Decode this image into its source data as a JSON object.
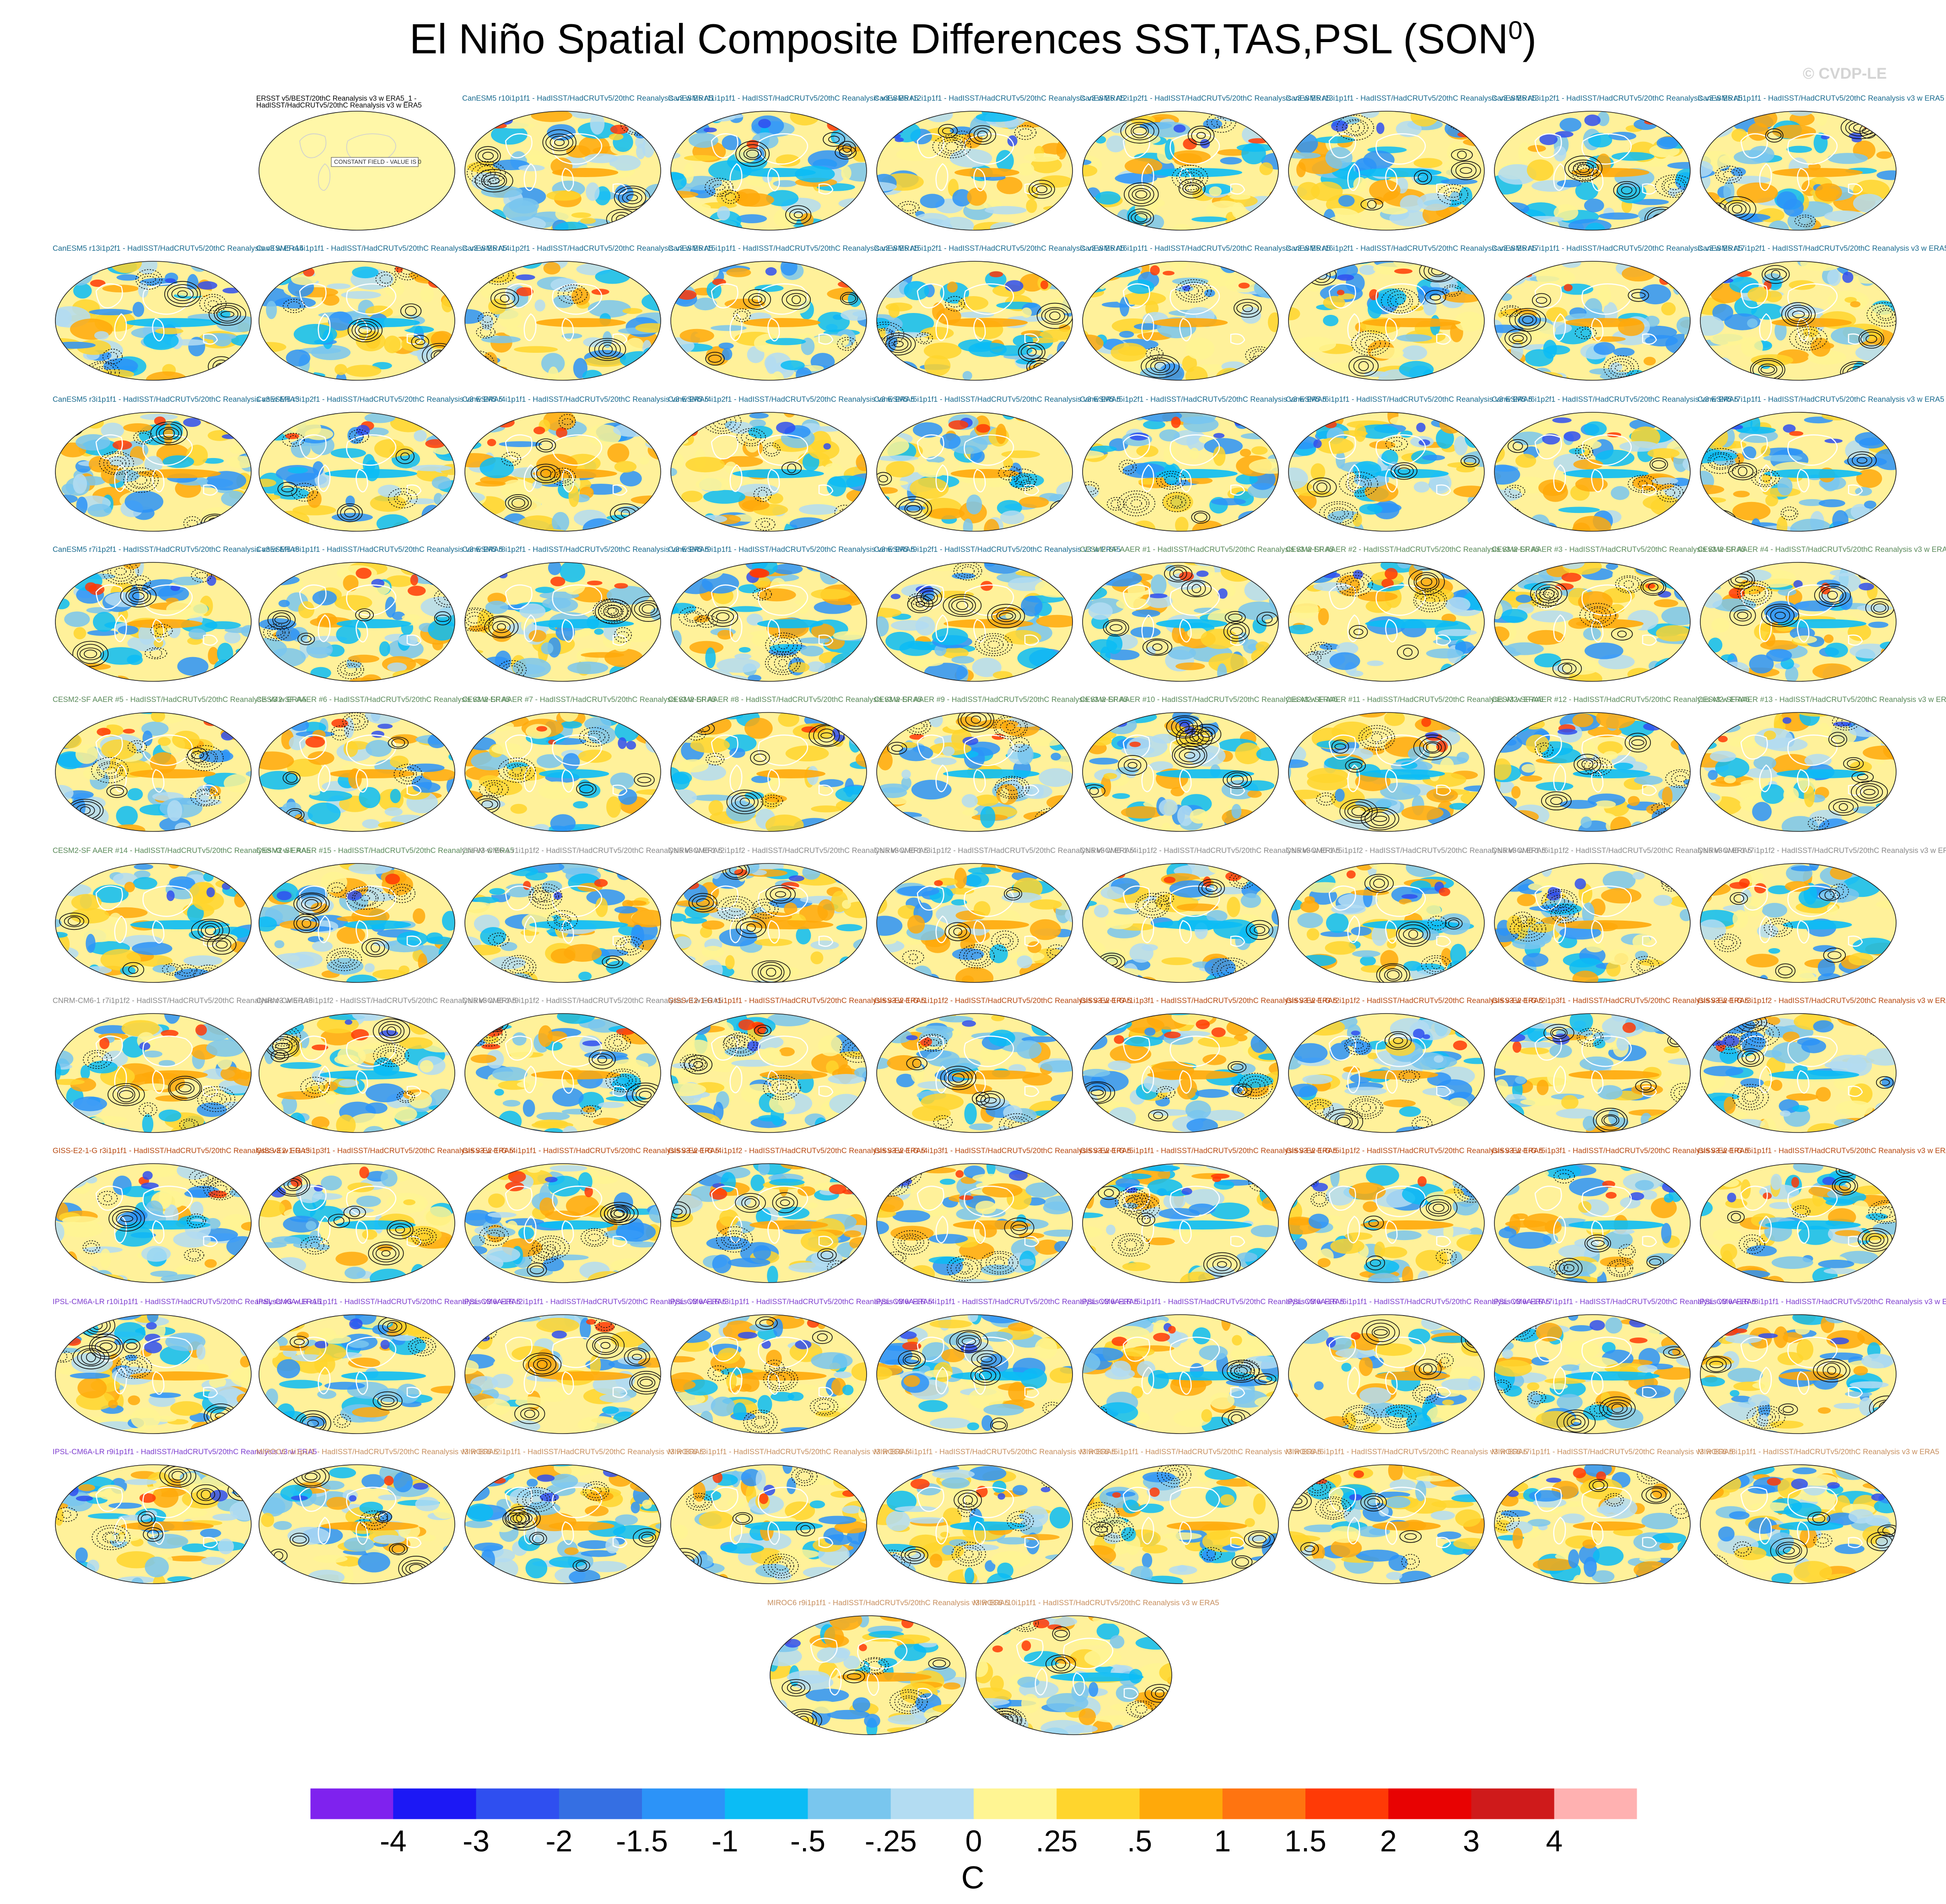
{
  "title": "El Niño Spatial Composite Differences SST,TAS,PSL (SON",
  "title_superscript": "0",
  "title_suffix": ")",
  "watermark": "© CVDP-LE",
  "colors": {
    "CanESM5": "#1a6b8f",
    "CESM2-SF AAER": "#5a8a5a",
    "CNRM-CM6-1": "#8a8a8a",
    "GISS-E2-1-G": "#b84a12",
    "IPSL-CM6A-LR": "#8040d0",
    "MIROC6": "#c89060",
    "obs": "#000000"
  },
  "chart_data": {
    "type": "heatmap",
    "title": "El Niño Spatial Composite Differences SST,TAS,PSL (SON0)",
    "variables": [
      "SST",
      "TAS",
      "PSL"
    ],
    "season": "SON0",
    "units": "C",
    "colorbar": {
      "labels": [
        "-4",
        "-3",
        "-2",
        "-1.5",
        "-1",
        "-.5",
        "-.25",
        "0",
        ".25",
        ".5",
        "1",
        "1.5",
        "2",
        "3",
        "4"
      ],
      "colors": [
        "#7f22ee",
        "#1c18f5",
        "#2f4ff0",
        "#356fe3",
        "#2c93f8",
        "#0bbcf5",
        "#79c6ee",
        "#b3dcf2",
        "#fff593",
        "#ffd52d",
        "#ffa90a",
        "#ff7410",
        "#ff3a06",
        "#e80202",
        "#cf1a1b",
        "#ffb1b1"
      ]
    },
    "panels": [
      {
        "label": "ERSST v5/BEST/20thC Reanalysis v3 w ERA5_1 -\nHadISST/HadCRUTv5/20thC Reanalysis v3 w ERA5",
        "group": "obs",
        "note": "CONSTANT FIELD - VALUE IS 0"
      },
      {
        "label": "CanESM5 r10i1p1f1 - HadISST/HadCRUTv5/20thC Reanalysis v3 w ERA5",
        "group": "CanESM5"
      },
      {
        "label": "CanESM5 r11i1p1f1 - HadISST/HadCRUTv5/20thC Reanalysis v3 w ERA5",
        "group": "CanESM5"
      },
      {
        "label": "CanESM5 r12i1p1f1 - HadISST/HadCRUTv5/20thC Reanalysis v3 w ERA5",
        "group": "CanESM5"
      },
      {
        "label": "CanESM5 r12i1p2f1 - HadISST/HadCRUTv5/20thC Reanalysis v3 w ERA5",
        "group": "CanESM5"
      },
      {
        "label": "CanESM5 r13i1p1f1 - HadISST/HadCRUTv5/20thC Reanalysis v3 w ERA5",
        "group": "CanESM5"
      },
      {
        "label": "CanESM5 r13i1p2f1 - HadISST/HadCRUTv5/20thC Reanalysis v3 w ERA5",
        "group": "CanESM5"
      },
      {
        "label": "CanESM5 r1i1p1f1 - HadISST/HadCRUTv5/20thC Reanalysis v3 w ERA5",
        "group": "CanESM5"
      },
      {
        "label": "CanESM5 r13i1p2f1 - HadISST/HadCRUTv5/20thC Reanalysis v3 w ERA5",
        "group": "CanESM5"
      },
      {
        "label": "CanESM5 r14i1p1f1 - HadISST/HadCRUTv5/20thC Reanalysis v3 w ERA5",
        "group": "CanESM5"
      },
      {
        "label": "CanESM5 r14i1p2f1 - HadISST/HadCRUTv5/20thC Reanalysis v3 w ERA5",
        "group": "CanESM5"
      },
      {
        "label": "CanESM5 r15i1p1f1 - HadISST/HadCRUTv5/20thC Reanalysis v3 w ERA5",
        "group": "CanESM5"
      },
      {
        "label": "CanESM5 r15i1p2f1 - HadISST/HadCRUTv5/20thC Reanalysis v3 w ERA5",
        "group": "CanESM5"
      },
      {
        "label": "CanESM5 r16i1p1f1 - HadISST/HadCRUTv5/20thC Reanalysis v3 w ERA5",
        "group": "CanESM5"
      },
      {
        "label": "CanESM5 r16i1p2f1 - HadISST/HadCRUTv5/20thC Reanalysis v3 w ERA5",
        "group": "CanESM5"
      },
      {
        "label": "CanESM5 r17i1p1f1 - HadISST/HadCRUTv5/20thC Reanalysis v3 w ERA5",
        "group": "CanESM5"
      },
      {
        "label": "CanESM5 r17i1p2f1 - HadISST/HadCRUTv5/20thC Reanalysis v3 w ERA5",
        "group": "CanESM5"
      },
      {
        "label": "CanESM5 r3i1p1f1 - HadISST/HadCRUTv5/20thC Reanalysis v3 w ERA5",
        "group": "CanESM5"
      },
      {
        "label": "CanESM5 r3i1p2f1 - HadISST/HadCRUTv5/20thC Reanalysis v3 w ERA5",
        "group": "CanESM5"
      },
      {
        "label": "CanESM5 r4i1p1f1 - HadISST/HadCRUTv5/20thC Reanalysis v3 w ERA5",
        "group": "CanESM5"
      },
      {
        "label": "CanESM5 r4i1p2f1 - HadISST/HadCRUTv5/20thC Reanalysis v3 w ERA5",
        "group": "CanESM5"
      },
      {
        "label": "CanESM5 r5i1p1f1 - HadISST/HadCRUTv5/20thC Reanalysis v3 w ERA5",
        "group": "CanESM5"
      },
      {
        "label": "CanESM5 r5i1p2f1 - HadISST/HadCRUTv5/20thC Reanalysis v3 w ERA5",
        "group": "CanESM5"
      },
      {
        "label": "CanESM5 r6i1p1f1 - HadISST/HadCRUTv5/20thC Reanalysis v3 w ERA5",
        "group": "CanESM5"
      },
      {
        "label": "CanESM5 r6i1p2f1 - HadISST/HadCRUTv5/20thC Reanalysis v3 w ERA5",
        "group": "CanESM5"
      },
      {
        "label": "CanESM5 r7i1p1f1 - HadISST/HadCRUTv5/20thC Reanalysis v3 w ERA5",
        "group": "CanESM5"
      },
      {
        "label": "CanESM5 r7i1p2f1 - HadISST/HadCRUTv5/20thC Reanalysis v3 w ERA5",
        "group": "CanESM5"
      },
      {
        "label": "CanESM5 r8i1p1f1 - HadISST/HadCRUTv5/20thC Reanalysis v3 w ERA5",
        "group": "CanESM5"
      },
      {
        "label": "CanESM5 r8i1p2f1 - HadISST/HadCRUTv5/20thC Reanalysis v3 w ERA5",
        "group": "CanESM5"
      },
      {
        "label": "CanESM5 r9i1p1f1 - HadISST/HadCRUTv5/20thC Reanalysis v3 w ERA5",
        "group": "CanESM5"
      },
      {
        "label": "CanESM5 r9i1p2f1 - HadISST/HadCRUTv5/20thC Reanalysis v3 w ERA5",
        "group": "CanESM5"
      },
      {
        "label": "CESM2-SF AAER #1 - HadISST/HadCRUTv5/20thC Reanalysis v3 w ERA5",
        "group": "CESM2-SF AAER"
      },
      {
        "label": "CESM2-SF AAER #2 - HadISST/HadCRUTv5/20thC Reanalysis v3 w ERA5",
        "group": "CESM2-SF AAER"
      },
      {
        "label": "CESM2-SF AAER #3 - HadISST/HadCRUTv5/20thC Reanalysis v3 w ERA5",
        "group": "CESM2-SF AAER"
      },
      {
        "label": "CESM2-SF AAER #4 - HadISST/HadCRUTv5/20thC Reanalysis v3 w ERA5",
        "group": "CESM2-SF AAER"
      },
      {
        "label": "CESM2-SF AAER #5 - HadISST/HadCRUTv5/20thC Reanalysis v3 w ERA5",
        "group": "CESM2-SF AAER"
      },
      {
        "label": "CESM2-SF AAER #6 - HadISST/HadCRUTv5/20thC Reanalysis v3 w ERA5",
        "group": "CESM2-SF AAER"
      },
      {
        "label": "CESM2-SF AAER #7 - HadISST/HadCRUTv5/20thC Reanalysis v3 w ERA5",
        "group": "CESM2-SF AAER"
      },
      {
        "label": "CESM2-SF AAER #8 - HadISST/HadCRUTv5/20thC Reanalysis v3 w ERA5",
        "group": "CESM2-SF AAER"
      },
      {
        "label": "CESM2-SF AAER #9 - HadISST/HadCRUTv5/20thC Reanalysis v3 w ERA5",
        "group": "CESM2-SF AAER"
      },
      {
        "label": "CESM2-SF AAER #10 - HadISST/HadCRUTv5/20thC Reanalysis v3 w ERA5",
        "group": "CESM2-SF AAER"
      },
      {
        "label": "CESM2-SF AAER #11 - HadISST/HadCRUTv5/20thC Reanalysis v3 w ERA5",
        "group": "CESM2-SF AAER"
      },
      {
        "label": "CESM2-SF AAER #12 - HadISST/HadCRUTv5/20thC Reanalysis v3 w ERA5",
        "group": "CESM2-SF AAER"
      },
      {
        "label": "CESM2-SF AAER #13 - HadISST/HadCRUTv5/20thC Reanalysis v3 w ERA5",
        "group": "CESM2-SF AAER"
      },
      {
        "label": "CESM2-SF AAER #14 - HadISST/HadCRUTv5/20thC Reanalysis v3 w ERA5",
        "group": "CESM2-SF AAER"
      },
      {
        "label": "CESM2-SF AAER #15 - HadISST/HadCRUTv5/20thC Reanalysis v3 w ERA5",
        "group": "CESM2-SF AAER"
      },
      {
        "label": "CNRM-CM6-1 r1i1p1f2 - HadISST/HadCRUTv5/20thC Reanalysis v3 w ERA5",
        "group": "CNRM-CM6-1"
      },
      {
        "label": "CNRM-CM6-1 r2i1p1f2 - HadISST/HadCRUTv5/20thC Reanalysis v3 w ERA5",
        "group": "CNRM-CM6-1"
      },
      {
        "label": "CNRM-CM6-1 r3i1p1f2 - HadISST/HadCRUTv5/20thC Reanalysis v3 w ERA5",
        "group": "CNRM-CM6-1"
      },
      {
        "label": "CNRM-CM6-1 r4i1p1f2 - HadISST/HadCRUTv5/20thC Reanalysis v3 w ERA5",
        "group": "CNRM-CM6-1"
      },
      {
        "label": "CNRM-CM6-1 r5i1p1f2 - HadISST/HadCRUTv5/20thC Reanalysis v3 w ERA5",
        "group": "CNRM-CM6-1"
      },
      {
        "label": "CNRM-CM6-1 r6i1p1f2 - HadISST/HadCRUTv5/20thC Reanalysis v3 w ERA5",
        "group": "CNRM-CM6-1"
      },
      {
        "label": "CNRM-CM6-1 r7i1p1f2 - HadISST/HadCRUTv5/20thC Reanalysis v3 w ERA5",
        "group": "CNRM-CM6-1"
      },
      {
        "label": "CNRM-CM6-1 r7i1p1f2 - HadISST/HadCRUTv5/20thC Reanalysis v3 w ERA5",
        "group": "CNRM-CM6-1"
      },
      {
        "label": "CNRM-CM6-1 r8i1p1f2 - HadISST/HadCRUTv5/20thC Reanalysis v3 w ERA5",
        "group": "CNRM-CM6-1"
      },
      {
        "label": "CNRM-CM6-1 r9i1p1f2 - HadISST/HadCRUTv5/20thC Reanalysis v3 w ERA5",
        "group": "CNRM-CM6-1"
      },
      {
        "label": "GISS-E2-1-G r1i1p1f1 - HadISST/HadCRUTv5/20thC Reanalysis v3 w ERA5",
        "group": "GISS-E2-1-G"
      },
      {
        "label": "GISS-E2-1-G r1i1p1f2 - HadISST/HadCRUTv5/20thC Reanalysis v3 w ERA5",
        "group": "GISS-E2-1-G"
      },
      {
        "label": "GISS-E2-1-G r1i1p3f1 - HadISST/HadCRUTv5/20thC Reanalysis v3 w ERA5",
        "group": "GISS-E2-1-G"
      },
      {
        "label": "GISS-E2-1-G r2i1p1f2 - HadISST/HadCRUTv5/20thC Reanalysis v3 w ERA5",
        "group": "GISS-E2-1-G"
      },
      {
        "label": "GISS-E2-1-G r2i1p3f1 - HadISST/HadCRUTv5/20thC Reanalysis v3 w ERA5",
        "group": "GISS-E2-1-G"
      },
      {
        "label": "GISS-E2-1-G r3i1p1f2 - HadISST/HadCRUTv5/20thC Reanalysis v3 w ERA5",
        "group": "GISS-E2-1-G"
      },
      {
        "label": "GISS-E2-1-G r3i1p1f1 - HadISST/HadCRUTv5/20thC Reanalysis v3 w ERA5",
        "group": "GISS-E2-1-G"
      },
      {
        "label": "GISS-E2-1-G r3i1p3f1 - HadISST/HadCRUTv5/20thC Reanalysis v3 w ERA5",
        "group": "GISS-E2-1-G"
      },
      {
        "label": "GISS-E2-1-G r4i1p1f1 - HadISST/HadCRUTv5/20thC Reanalysis v3 w ERA5",
        "group": "GISS-E2-1-G"
      },
      {
        "label": "GISS-E2-1-G r4i1p1f2 - HadISST/HadCRUTv5/20thC Reanalysis v3 w ERA5",
        "group": "GISS-E2-1-G"
      },
      {
        "label": "GISS-E2-1-G r4i1p3f1 - HadISST/HadCRUTv5/20thC Reanalysis v3 w ERA5",
        "group": "GISS-E2-1-G"
      },
      {
        "label": "GISS-E2-1-G r5i1p1f1 - HadISST/HadCRUTv5/20thC Reanalysis v3 w ERA5",
        "group": "GISS-E2-1-G"
      },
      {
        "label": "GISS-E2-1-G r5i1p1f2 - HadISST/HadCRUTv5/20thC Reanalysis v3 w ERA5",
        "group": "GISS-E2-1-G"
      },
      {
        "label": "GISS-E2-1-G r5i1p3f1 - HadISST/HadCRUTv5/20thC Reanalysis v3 w ERA5",
        "group": "GISS-E2-1-G"
      },
      {
        "label": "GISS-E2-1-G r6i1p1f1 - HadISST/HadCRUTv5/20thC Reanalysis v3 w ERA5",
        "group": "GISS-E2-1-G"
      },
      {
        "label": "IPSL-CM6A-LR r10i1p1f1 - HadISST/HadCRUTv5/20thC Reanalysis v3 w ERA5",
        "group": "IPSL-CM6A-LR"
      },
      {
        "label": "IPSL-CM6A-LR r1i1p1f1 - HadISST/HadCRUTv5/20thC Reanalysis v3 w ERA5",
        "group": "IPSL-CM6A-LR"
      },
      {
        "label": "IPSL-CM6A-LR r2i1p1f1 - HadISST/HadCRUTv5/20thC Reanalysis v3 w ERA5",
        "group": "IPSL-CM6A-LR"
      },
      {
        "label": "IPSL-CM6A-LR r3i1p1f1 - HadISST/HadCRUTv5/20thC Reanalysis v3 w ERA5",
        "group": "IPSL-CM6A-LR"
      },
      {
        "label": "IPSL-CM6A-LR r4i1p1f1 - HadISST/HadCRUTv5/20thC Reanalysis v3 w ERA5",
        "group": "IPSL-CM6A-LR"
      },
      {
        "label": "IPSL-CM6A-LR r5i1p1f1 - HadISST/HadCRUTv5/20thC Reanalysis v3 w ERA5",
        "group": "IPSL-CM6A-LR"
      },
      {
        "label": "IPSL-CM6A-LR r6i1p1f1 - HadISST/HadCRUTv5/20thC Reanalysis v3 w ERA5",
        "group": "IPSL-CM6A-LR"
      },
      {
        "label": "IPSL-CM6A-LR r7i1p1f1 - HadISST/HadCRUTv5/20thC Reanalysis v3 w ERA5",
        "group": "IPSL-CM6A-LR"
      },
      {
        "label": "IPSL-CM6A-LR r8i1p1f1 - HadISST/HadCRUTv5/20thC Reanalysis v3 w ERA5",
        "group": "IPSL-CM6A-LR"
      },
      {
        "label": "IPSL-CM6A-LR r9i1p1f1 - HadISST/HadCRUTv5/20thC Reanalysis v3 w ERA5",
        "group": "IPSL-CM6A-LR"
      },
      {
        "label": "MIROC6 r1i1p1f1 - HadISST/HadCRUTv5/20thC Reanalysis v3 w ERA5",
        "group": "MIROC6"
      },
      {
        "label": "MIROC6 r2i1p1f1 - HadISST/HadCRUTv5/20thC Reanalysis v3 w ERA5",
        "group": "MIROC6"
      },
      {
        "label": "MIROC6 r3i1p1f1 - HadISST/HadCRUTv5/20thC Reanalysis v3 w ERA5",
        "group": "MIROC6"
      },
      {
        "label": "MIROC6 r4i1p1f1 - HadISST/HadCRUTv5/20thC Reanalysis v3 w ERA5",
        "group": "MIROC6"
      },
      {
        "label": "MIROC6 r5i1p1f1 - HadISST/HadCRUTv5/20thC Reanalysis v3 w ERA5",
        "group": "MIROC6"
      },
      {
        "label": "MIROC6 r6i1p1f1 - HadISST/HadCRUTv5/20thC Reanalysis v3 w ERA5",
        "group": "MIROC6"
      },
      {
        "label": "MIROC6 r7i1p1f1 - HadISST/HadCRUTv5/20thC Reanalysis v3 w ERA5",
        "group": "MIROC6"
      },
      {
        "label": "MIROC6 r8i1p1f1 - HadISST/HadCRUTv5/20thC Reanalysis v3 w ERA5",
        "group": "MIROC6"
      },
      {
        "label": "MIROC6 r9i1p1f1 - HadISST/HadCRUTv5/20thC Reanalysis v3 w ERA5",
        "group": "MIROC6"
      },
      {
        "label": "MIROC6 r10i1p1f1 - HadISST/HadCRUTv5/20thC Reanalysis v3 w ERA5",
        "group": "MIROC6"
      }
    ]
  }
}
